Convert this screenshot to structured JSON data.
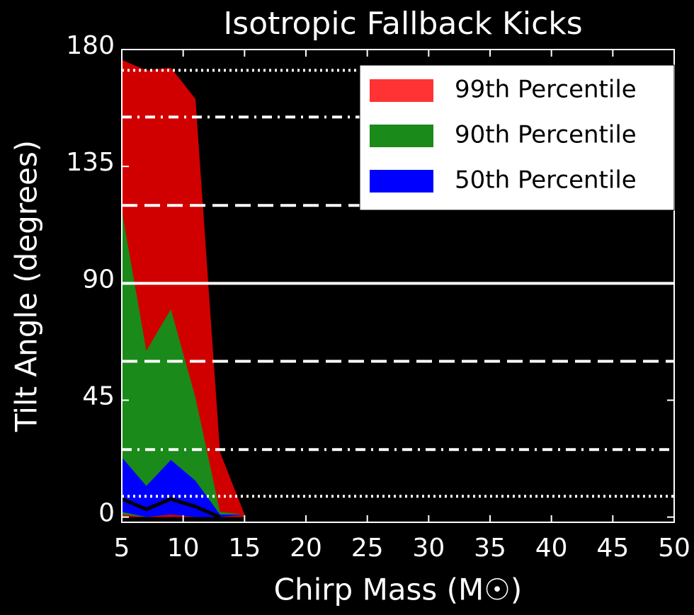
{
  "chart_data": {
    "type": "area",
    "title": "Isotropic Fallback Kicks",
    "x_label": "Chirp Mass (M☉)",
    "y_label": "Tilt Angle (degrees)",
    "x": [
      5,
      7,
      9,
      11,
      13,
      15
    ],
    "series": [
      {
        "name": "99th Percentile",
        "color": "#d00000",
        "legend_color": "#ff3333",
        "values": [
          176,
          172,
          173,
          161,
          25,
          1
        ],
        "lower": [
          0,
          0,
          0,
          0,
          0,
          0
        ]
      },
      {
        "name": "90th Percentile",
        "color": "#1a8a1a",
        "legend_color": "#1a8a1a",
        "values": [
          118,
          64,
          80,
          46,
          2,
          1
        ],
        "lower": [
          1,
          0,
          1,
          0,
          1,
          1
        ]
      },
      {
        "name": "50th Percentile",
        "color": "#0000ff",
        "legend_color": "#0000ff",
        "values": [
          23,
          12,
          22,
          14,
          1,
          1
        ],
        "lower": [
          2,
          0,
          1,
          0,
          0,
          1
        ]
      }
    ],
    "median": {
      "color": "#000000",
      "values": [
        7,
        3,
        7,
        4,
        0,
        null
      ]
    },
    "reference_lines": [
      {
        "value": 172,
        "style": "dotted"
      },
      {
        "value": 154,
        "style": "dashdot"
      },
      {
        "value": 120,
        "style": "dashed"
      },
      {
        "value": 90,
        "style": "solid"
      },
      {
        "value": 60,
        "style": "dashed"
      },
      {
        "value": 26,
        "style": "dashdot"
      },
      {
        "value": 8,
        "style": "dotted"
      }
    ],
    "xlim": [
      5,
      50
    ],
    "ylim": [
      -2,
      180
    ],
    "xticks": [
      5,
      10,
      15,
      20,
      25,
      30,
      35,
      40,
      45,
      50
    ],
    "yticks": [
      0,
      45,
      90,
      135,
      180
    ],
    "legend": "upper right"
  }
}
